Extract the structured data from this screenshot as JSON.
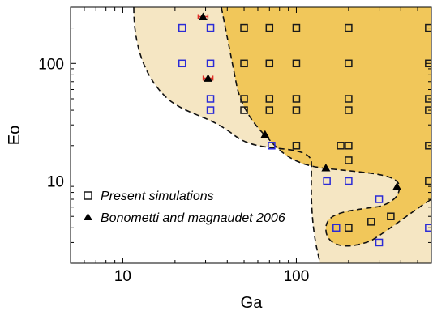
{
  "chart_data": {
    "type": "scatter",
    "xlabel": "Ga",
    "ylabel": "Eo",
    "xscale": "log",
    "yscale": "log",
    "xlim": [
      5,
      600
    ],
    "ylim": [
      2,
      300
    ],
    "xticks": [
      {
        "value": 10,
        "label": "10"
      },
      {
        "value": 100,
        "label": "100"
      }
    ],
    "yticks": [
      {
        "value": 10,
        "label": "10"
      },
      {
        "value": 100,
        "label": "100"
      }
    ],
    "regions": [
      {
        "fill": "#f5e6c3"
      },
      {
        "fill": "#f1c75a"
      }
    ],
    "legend": {
      "placement": "lower-left",
      "entries": [
        {
          "label": "Present simulations",
          "marker": "open-square"
        },
        {
          "label": "Bonometti and magnaudet 2006",
          "marker": "filled-triangle"
        }
      ]
    },
    "series": [
      {
        "name": "Present simulations",
        "marker": "open-square",
        "points_black": [
          [
            50,
            200
          ],
          [
            70,
            200
          ],
          [
            100,
            200
          ],
          [
            200,
            200
          ],
          [
            580,
            200
          ],
          [
            50,
            100
          ],
          [
            70,
            100
          ],
          [
            100,
            100
          ],
          [
            200,
            100
          ],
          [
            580,
            100
          ],
          [
            50,
            50
          ],
          [
            70,
            50
          ],
          [
            100,
            50
          ],
          [
            200,
            50
          ],
          [
            580,
            50
          ],
          [
            50,
            40
          ],
          [
            70,
            40
          ],
          [
            100,
            40
          ],
          [
            200,
            40
          ],
          [
            580,
            40
          ],
          [
            100,
            20
          ],
          [
            180,
            20
          ],
          [
            200,
            20
          ],
          [
            580,
            20
          ],
          [
            200,
            15
          ],
          [
            580,
            10
          ],
          [
            200,
            4
          ],
          [
            270,
            4.5
          ],
          [
            350,
            5
          ]
        ],
        "points_blue": [
          [
            22,
            200
          ],
          [
            32,
            200
          ],
          [
            22,
            100
          ],
          [
            32,
            100
          ],
          [
            32,
            50
          ],
          [
            32,
            40
          ],
          [
            72,
            20
          ],
          [
            150,
            10
          ],
          [
            200,
            10
          ],
          [
            300,
            7
          ],
          [
            170,
            4
          ],
          [
            300,
            3
          ],
          [
            580,
            4
          ]
        ]
      },
      {
        "name": "Bonometti and magnaudet 2006",
        "marker": "filled-triangle",
        "points": [
          {
            "x": 29,
            "y": 250,
            "xerr": true
          },
          {
            "x": 31,
            "y": 75,
            "xerr": true
          },
          {
            "x": 66,
            "y": 25,
            "xerr": false
          },
          {
            "x": 148,
            "y": 13,
            "xerr": false
          },
          {
            "x": 380,
            "y": 9,
            "xerr": false
          }
        ]
      }
    ]
  },
  "colors": {
    "light_region": "#f5e6c3",
    "dark_region": "#f1c75a",
    "square_black": "#1a1a1a",
    "square_blue": "#2b2bd6",
    "error_bar": "#e0302a"
  }
}
